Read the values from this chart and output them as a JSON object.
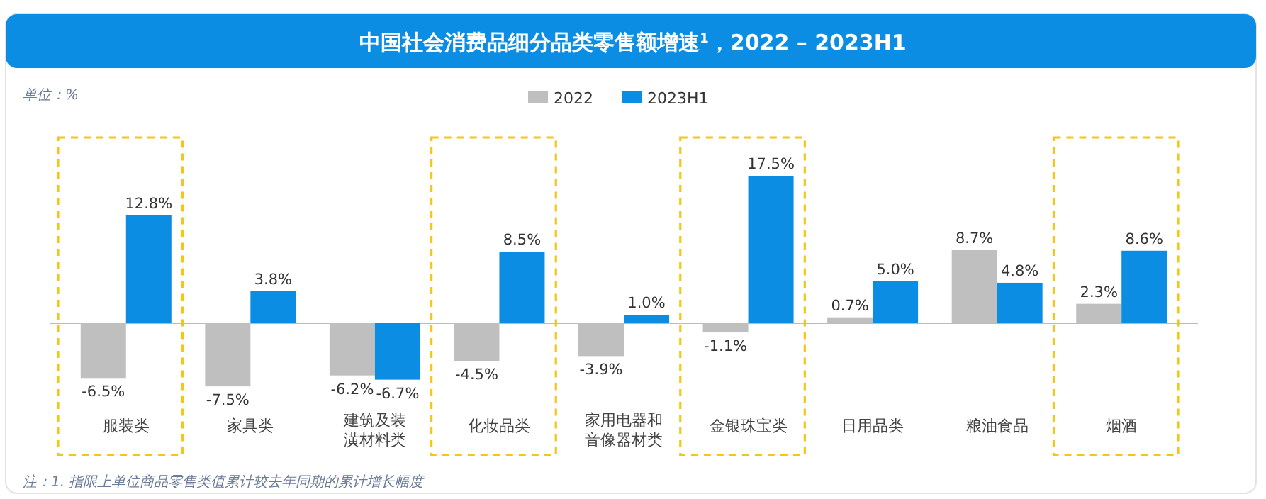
{
  "chart_data": {
    "type": "bar",
    "title": "中国社会消费品细分品类零售额增速$^{1}$，2022 – 2023H1",
    "categories": [
      "服装类",
      "家具类",
      "建筑及装潢材料类",
      "化妆品类",
      "家用电器和音像器材类",
      "金银珠宝类",
      "日用品类",
      "粮油食品",
      "烟酒"
    ],
    "series": [
      {
        "name": "2022",
        "color": "#bfbfbf",
        "values": [
          -6.5,
          -7.5,
          -6.2,
          -4.5,
          -3.9,
          -1.1,
          0.7,
          8.7,
          2.3
        ],
        "value_labels": [
          "-6.5%",
          "-7.5%",
          "-6.2%",
          "-4.5%",
          "-3.9%",
          "-1.1%",
          "0.7%",
          "8.7%",
          "2.3%"
        ]
      },
      {
        "name": "2023H1",
        "color": "#0b8de3",
        "values": [
          12.8,
          3.8,
          -6.7,
          8.5,
          1.0,
          17.5,
          5.0,
          4.8,
          8.6
        ],
        "value_labels": [
          "12.8%",
          "3.8%",
          "-6.7%",
          "8.5%",
          "1.0%",
          "17.5%",
          "5.0%",
          "4.8%",
          "8.6%"
        ]
      }
    ],
    "legend": "top",
    "annotations": [
      "单位：%",
      "注：1. 指限上单位商品零售类值累计较去年同期的累计增长幅度"
    ]
  }
}
